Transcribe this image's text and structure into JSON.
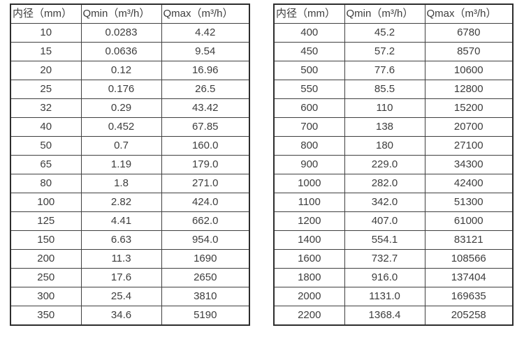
{
  "colors": {
    "background": "#ffffff",
    "text": "#3d3d3d",
    "border": "#2d2d2d"
  },
  "chart_data": [
    {
      "type": "table",
      "name": "flow-range-small-diameters",
      "columns": [
        "内径（mm）",
        "Qmin（m³/h）",
        "Qmax（m³/h）"
      ],
      "rows": [
        [
          "10",
          "0.0283",
          "4.42"
        ],
        [
          "15",
          "0.0636",
          "9.54"
        ],
        [
          "20",
          "0.12",
          "16.96"
        ],
        [
          "25",
          "0.176",
          "26.5"
        ],
        [
          "32",
          "0.29",
          "43.42"
        ],
        [
          "40",
          "0.452",
          "67.85"
        ],
        [
          "50",
          "0.7",
          "160.0"
        ],
        [
          "65",
          "1.19",
          "179.0"
        ],
        [
          "80",
          "1.8",
          "271.0"
        ],
        [
          "100",
          "2.82",
          "424.0"
        ],
        [
          "125",
          "4.41",
          "662.0"
        ],
        [
          "150",
          "6.63",
          "954.0"
        ],
        [
          "200",
          "11.3",
          "1690"
        ],
        [
          "250",
          "17.6",
          "2650"
        ],
        [
          "300",
          "25.4",
          "3810"
        ],
        [
          "350",
          "34.6",
          "5190"
        ]
      ]
    },
    {
      "type": "table",
      "name": "flow-range-large-diameters",
      "columns": [
        "内径（mm）",
        "Qmin（m³/h）",
        "Qmax（m³/h）"
      ],
      "rows": [
        [
          "400",
          "45.2",
          "6780"
        ],
        [
          "450",
          "57.2",
          "8570"
        ],
        [
          "500",
          "77.6",
          "10600"
        ],
        [
          "550",
          "85.5",
          "12800"
        ],
        [
          "600",
          "110",
          "15200"
        ],
        [
          "700",
          "138",
          "20700"
        ],
        [
          "800",
          "180",
          "27100"
        ],
        [
          "900",
          "229.0",
          "34300"
        ],
        [
          "1000",
          "282.0",
          "42400"
        ],
        [
          "1100",
          "342.0",
          "51300"
        ],
        [
          "1200",
          "407.0",
          "61000"
        ],
        [
          "1400",
          "554.1",
          "83121"
        ],
        [
          "1600",
          "732.7",
          "108566"
        ],
        [
          "1800",
          "916.0",
          "137404"
        ],
        [
          "2000",
          "1131.0",
          "169635"
        ],
        [
          "2200",
          "1368.4",
          "205258"
        ]
      ]
    }
  ]
}
